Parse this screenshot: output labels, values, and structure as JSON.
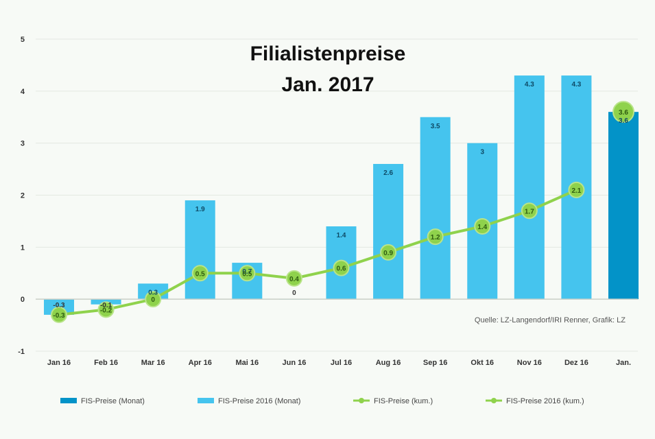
{
  "chart_data": {
    "type": "bar",
    "title": [
      "Filialistenpreise",
      "Jan. 2017"
    ],
    "categories": [
      "Jan 16",
      "Feb 16",
      "Mar 16",
      "Apr 16",
      "Mai 16",
      "Jun 16",
      "Jul 16",
      "Aug 16",
      "Sep 16",
      "Okt 16",
      "Nov 16",
      "Dez 16",
      "Jan."
    ],
    "ylim": [
      -1,
      5
    ],
    "yticks": [
      "-1",
      "0",
      "1",
      "2",
      "3",
      "4",
      "5"
    ],
    "grid": true,
    "legend_position": "bottom",
    "series": [
      {
        "name": "FIS-Preise (Monat)",
        "kind": "bar",
        "color": "#0393c8",
        "values": [
          null,
          null,
          null,
          null,
          null,
          null,
          null,
          null,
          null,
          null,
          null,
          null,
          3.6
        ],
        "labels": [
          "",
          "",
          "",
          "",
          "",
          "",
          "",
          "",
          "",
          "",
          "",
          "",
          "3.6"
        ]
      },
      {
        "name": "FIS-Preise 2016 (Monat)",
        "kind": "bar",
        "color": "#45c4ee",
        "values": [
          -0.3,
          -0.1,
          0.3,
          1.9,
          0.7,
          0,
          1.4,
          2.6,
          3.5,
          3.0,
          4.3,
          4.3,
          null
        ],
        "labels": [
          "-0.3",
          "-0.1",
          "0.3",
          "1.9",
          "0.7",
          "0",
          "1.4",
          "2.6",
          "3.5",
          "3",
          "4.3",
          "4.3",
          ""
        ]
      },
      {
        "name": "FIS-Preise (kum.)",
        "kind": "point",
        "color": "#8fd24c",
        "values": [
          null,
          null,
          null,
          null,
          null,
          null,
          null,
          null,
          null,
          null,
          null,
          null,
          3.6
        ],
        "labels": [
          "",
          "",
          "",
          "",
          "",
          "",
          "",
          "",
          "",
          "",
          "",
          "",
          "3.6"
        ]
      },
      {
        "name": "FIS-Preise 2016 (kum.)",
        "kind": "line",
        "color": "#8fd24c",
        "values": [
          -0.3,
          -0.2,
          0,
          0.5,
          0.5,
          0.4,
          0.6,
          0.9,
          1.2,
          1.4,
          1.7,
          2.1,
          null
        ],
        "labels": [
          "-0.3",
          "-0.2",
          "0",
          "0.5",
          "0.5",
          "0.4",
          "0.6",
          "0.9",
          "1.2",
          "1.4",
          "1.7",
          "2.1",
          ""
        ]
      }
    ],
    "source": "Quelle: LZ-Langendorf/IRI Renner, Grafik: LZ"
  }
}
